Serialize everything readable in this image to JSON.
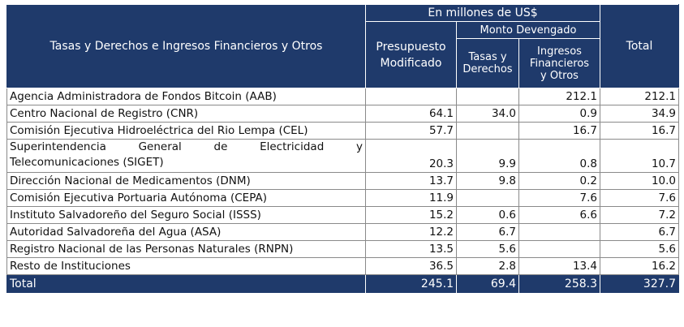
{
  "header": {
    "description_label": "Tasas y Derechos e Ingresos Financieros y Otros",
    "unit_label": "En millones de US$",
    "budget_label": "Presupuesto Modificado",
    "accrued_label": "Monto Devengado",
    "fees_label": "Tasas y Derechos",
    "financial_label": "Ingresos Financieros y Otros",
    "total_label": "Total"
  },
  "rows": [
    {
      "name": "Agencia Administradora de Fondos Bitcoin (AAB)",
      "budget": "",
      "fees": "",
      "financial": "212.1",
      "total": "212.1"
    },
    {
      "name": "Centro Nacional de Registro (CNR)",
      "budget": "64.1",
      "fees": "34.0",
      "financial": "0.9",
      "total": "34.9"
    },
    {
      "name": "Comisión Ejecutiva Hidroeléctrica del Rio Lempa (CEL)",
      "budget": "57.7",
      "fees": "",
      "financial": "16.7",
      "total": "16.7"
    },
    {
      "name_line1": [
        "Superintendencia",
        "General",
        "de",
        "Electricidad",
        "y"
      ],
      "name_line2": "Telecomunicaciones (SIGET)",
      "budget": "20.3",
      "fees": "9.9",
      "financial": "0.8",
      "total": "10.7"
    },
    {
      "name": "Dirección Nacional de Medicamentos (DNM)",
      "budget": "13.7",
      "fees": "9.8",
      "financial": "0.2",
      "total": "10.0"
    },
    {
      "name": "Comisión Ejecutiva Portuaria Autónoma (CEPA)",
      "budget": "11.9",
      "fees": "",
      "financial": "7.6",
      "total": "7.6"
    },
    {
      "name": "Instituto Salvadoreño del Seguro Social (ISSS)",
      "budget": "15.2",
      "fees": "0.6",
      "financial": "6.6",
      "total": "7.2"
    },
    {
      "name": "Autoridad Salvadoreña del Agua (ASA)",
      "budget": "12.2",
      "fees": "6.7",
      "financial": "",
      "total": "6.7"
    },
    {
      "name": "Registro Nacional de las Personas Naturales (RNPN)",
      "budget": "13.5",
      "fees": "5.6",
      "financial": "",
      "total": "5.6"
    },
    {
      "name": "Resto de Instituciones",
      "budget": "36.5",
      "fees": "2.8",
      "financial": "13.4",
      "total": "16.2"
    }
  ],
  "footer": {
    "label": "Total",
    "budget": "245.1",
    "fees": "69.4",
    "financial": "258.3",
    "total": "327.7"
  }
}
